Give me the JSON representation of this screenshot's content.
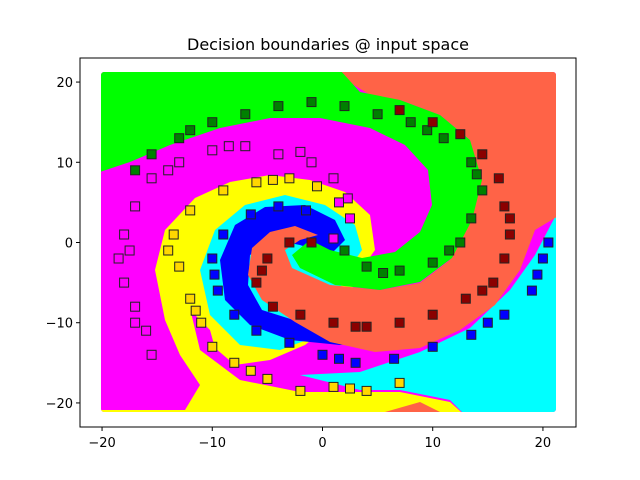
{
  "chart_data": {
    "type": "scatter",
    "title": "Decision boundaries @ input space",
    "xlabel": "",
    "ylabel": "",
    "xlim": [
      -22,
      23
    ],
    "ylim": [
      -23,
      23
    ],
    "xticks": [
      -20,
      -10,
      0,
      10,
      20
    ],
    "yticks": [
      -20,
      -10,
      0,
      10,
      20
    ],
    "xtick_labels": [
      "−20",
      "−10",
      "0",
      "10",
      "20"
    ],
    "ytick_labels": [
      "−20",
      "−10",
      "0",
      "10",
      "20"
    ],
    "grid": false,
    "marker": "square",
    "region_colors": {
      "magenta": "#ff00ff",
      "green": "#00ff00",
      "tomato": "#ff6347",
      "cyan": "#00ffff",
      "yellow": "#ffff00",
      "blue": "#0000ff"
    },
    "series": [
      {
        "color": "#ff00ff",
        "points": [
          [
            1,
            0.5
          ],
          [
            2.5,
            3
          ],
          [
            2.3,
            5.5
          ],
          [
            1,
            8
          ],
          [
            -1,
            10
          ],
          [
            -4,
            11
          ],
          [
            -7,
            12
          ],
          [
            -10,
            11.5
          ],
          [
            -13,
            10
          ],
          [
            -15.5,
            8
          ],
          [
            -17,
            4.5
          ],
          [
            -18,
            1
          ],
          [
            -18.5,
            -2
          ],
          [
            -18,
            -5
          ],
          [
            -17,
            -8
          ],
          [
            -16,
            -11
          ],
          [
            -15.5,
            -14
          ],
          [
            1.5,
            5
          ],
          [
            -2,
            11.3
          ],
          [
            -8.5,
            12
          ],
          [
            -14,
            9
          ],
          [
            -17.5,
            -1
          ],
          [
            -17,
            -10
          ]
        ]
      },
      {
        "color": "#008000",
        "points": [
          [
            2,
            -1
          ],
          [
            4,
            -3
          ],
          [
            7,
            -3.5
          ],
          [
            10,
            -2.5
          ],
          [
            12.5,
            0
          ],
          [
            13.5,
            3
          ],
          [
            14.5,
            6.5
          ],
          [
            13.5,
            10
          ],
          [
            11,
            13
          ],
          [
            8,
            15
          ],
          [
            5,
            16
          ],
          [
            2,
            17
          ],
          [
            -1,
            17.5
          ],
          [
            -4,
            17
          ],
          [
            -7,
            16
          ],
          [
            -10,
            15
          ],
          [
            -13,
            13
          ],
          [
            -15.5,
            11
          ],
          [
            -17,
            9
          ],
          [
            5.5,
            -3.8
          ],
          [
            11.5,
            -1
          ],
          [
            14,
            8.5
          ],
          [
            9.5,
            14
          ],
          [
            -12,
            14
          ]
        ]
      },
      {
        "color": "#8b0000",
        "points": [
          [
            -1,
            0
          ],
          [
            -3,
            0
          ],
          [
            -5,
            -2
          ],
          [
            -6,
            -5
          ],
          [
            -4.5,
            -8
          ],
          [
            -2,
            -9
          ],
          [
            1,
            -10
          ],
          [
            4,
            -10.5
          ],
          [
            7,
            -10
          ],
          [
            10,
            -9
          ],
          [
            13,
            -7
          ],
          [
            15.5,
            -5
          ],
          [
            16.5,
            -2
          ],
          [
            17,
            1
          ],
          [
            16.5,
            4.5
          ],
          [
            16,
            8
          ],
          [
            14.5,
            11
          ],
          [
            12.5,
            13.5
          ],
          [
            10,
            15
          ],
          [
            7,
            16.5
          ],
          [
            -5.5,
            -3.5
          ],
          [
            3,
            -10.5
          ],
          [
            14.5,
            -6
          ],
          [
            17,
            3
          ]
        ]
      },
      {
        "color": "#0000ff",
        "points": [
          [
            -1.5,
            4
          ],
          [
            -4,
            4.5
          ],
          [
            -6.5,
            3.5
          ],
          [
            -9,
            1
          ],
          [
            -10,
            -2
          ],
          [
            -9.5,
            -6
          ],
          [
            -8,
            -9
          ],
          [
            -6,
            -11
          ],
          [
            -3,
            -12.5
          ],
          [
            0,
            -14
          ],
          [
            3,
            -15
          ],
          [
            6.5,
            -14.5
          ],
          [
            10,
            -13
          ],
          [
            13.5,
            -11.5
          ],
          [
            16.5,
            -9
          ],
          [
            19,
            -6
          ],
          [
            20,
            -2
          ],
          [
            20.5,
            0
          ],
          [
            -9.8,
            -4
          ],
          [
            1.5,
            -14.5
          ],
          [
            15,
            -10
          ],
          [
            19.5,
            -4
          ]
        ]
      },
      {
        "color": "#ffd700",
        "points": [
          [
            -0.5,
            7
          ],
          [
            -3,
            8
          ],
          [
            -6,
            7.5
          ],
          [
            -9,
            6.5
          ],
          [
            -12,
            4
          ],
          [
            -13.5,
            1
          ],
          [
            -13,
            -3
          ],
          [
            -12,
            -7
          ],
          [
            -11,
            -10
          ],
          [
            -10,
            -13
          ],
          [
            -8,
            -15
          ],
          [
            -5,
            -17
          ],
          [
            -2,
            -18.5
          ],
          [
            1,
            -18
          ],
          [
            4,
            -18.5
          ],
          [
            7,
            -17.5
          ],
          [
            -14,
            -1
          ],
          [
            -11.5,
            -8.5
          ],
          [
            -6.5,
            -16
          ],
          [
            2.5,
            -18.2
          ],
          [
            -4.5,
            7.8
          ]
        ]
      }
    ]
  }
}
